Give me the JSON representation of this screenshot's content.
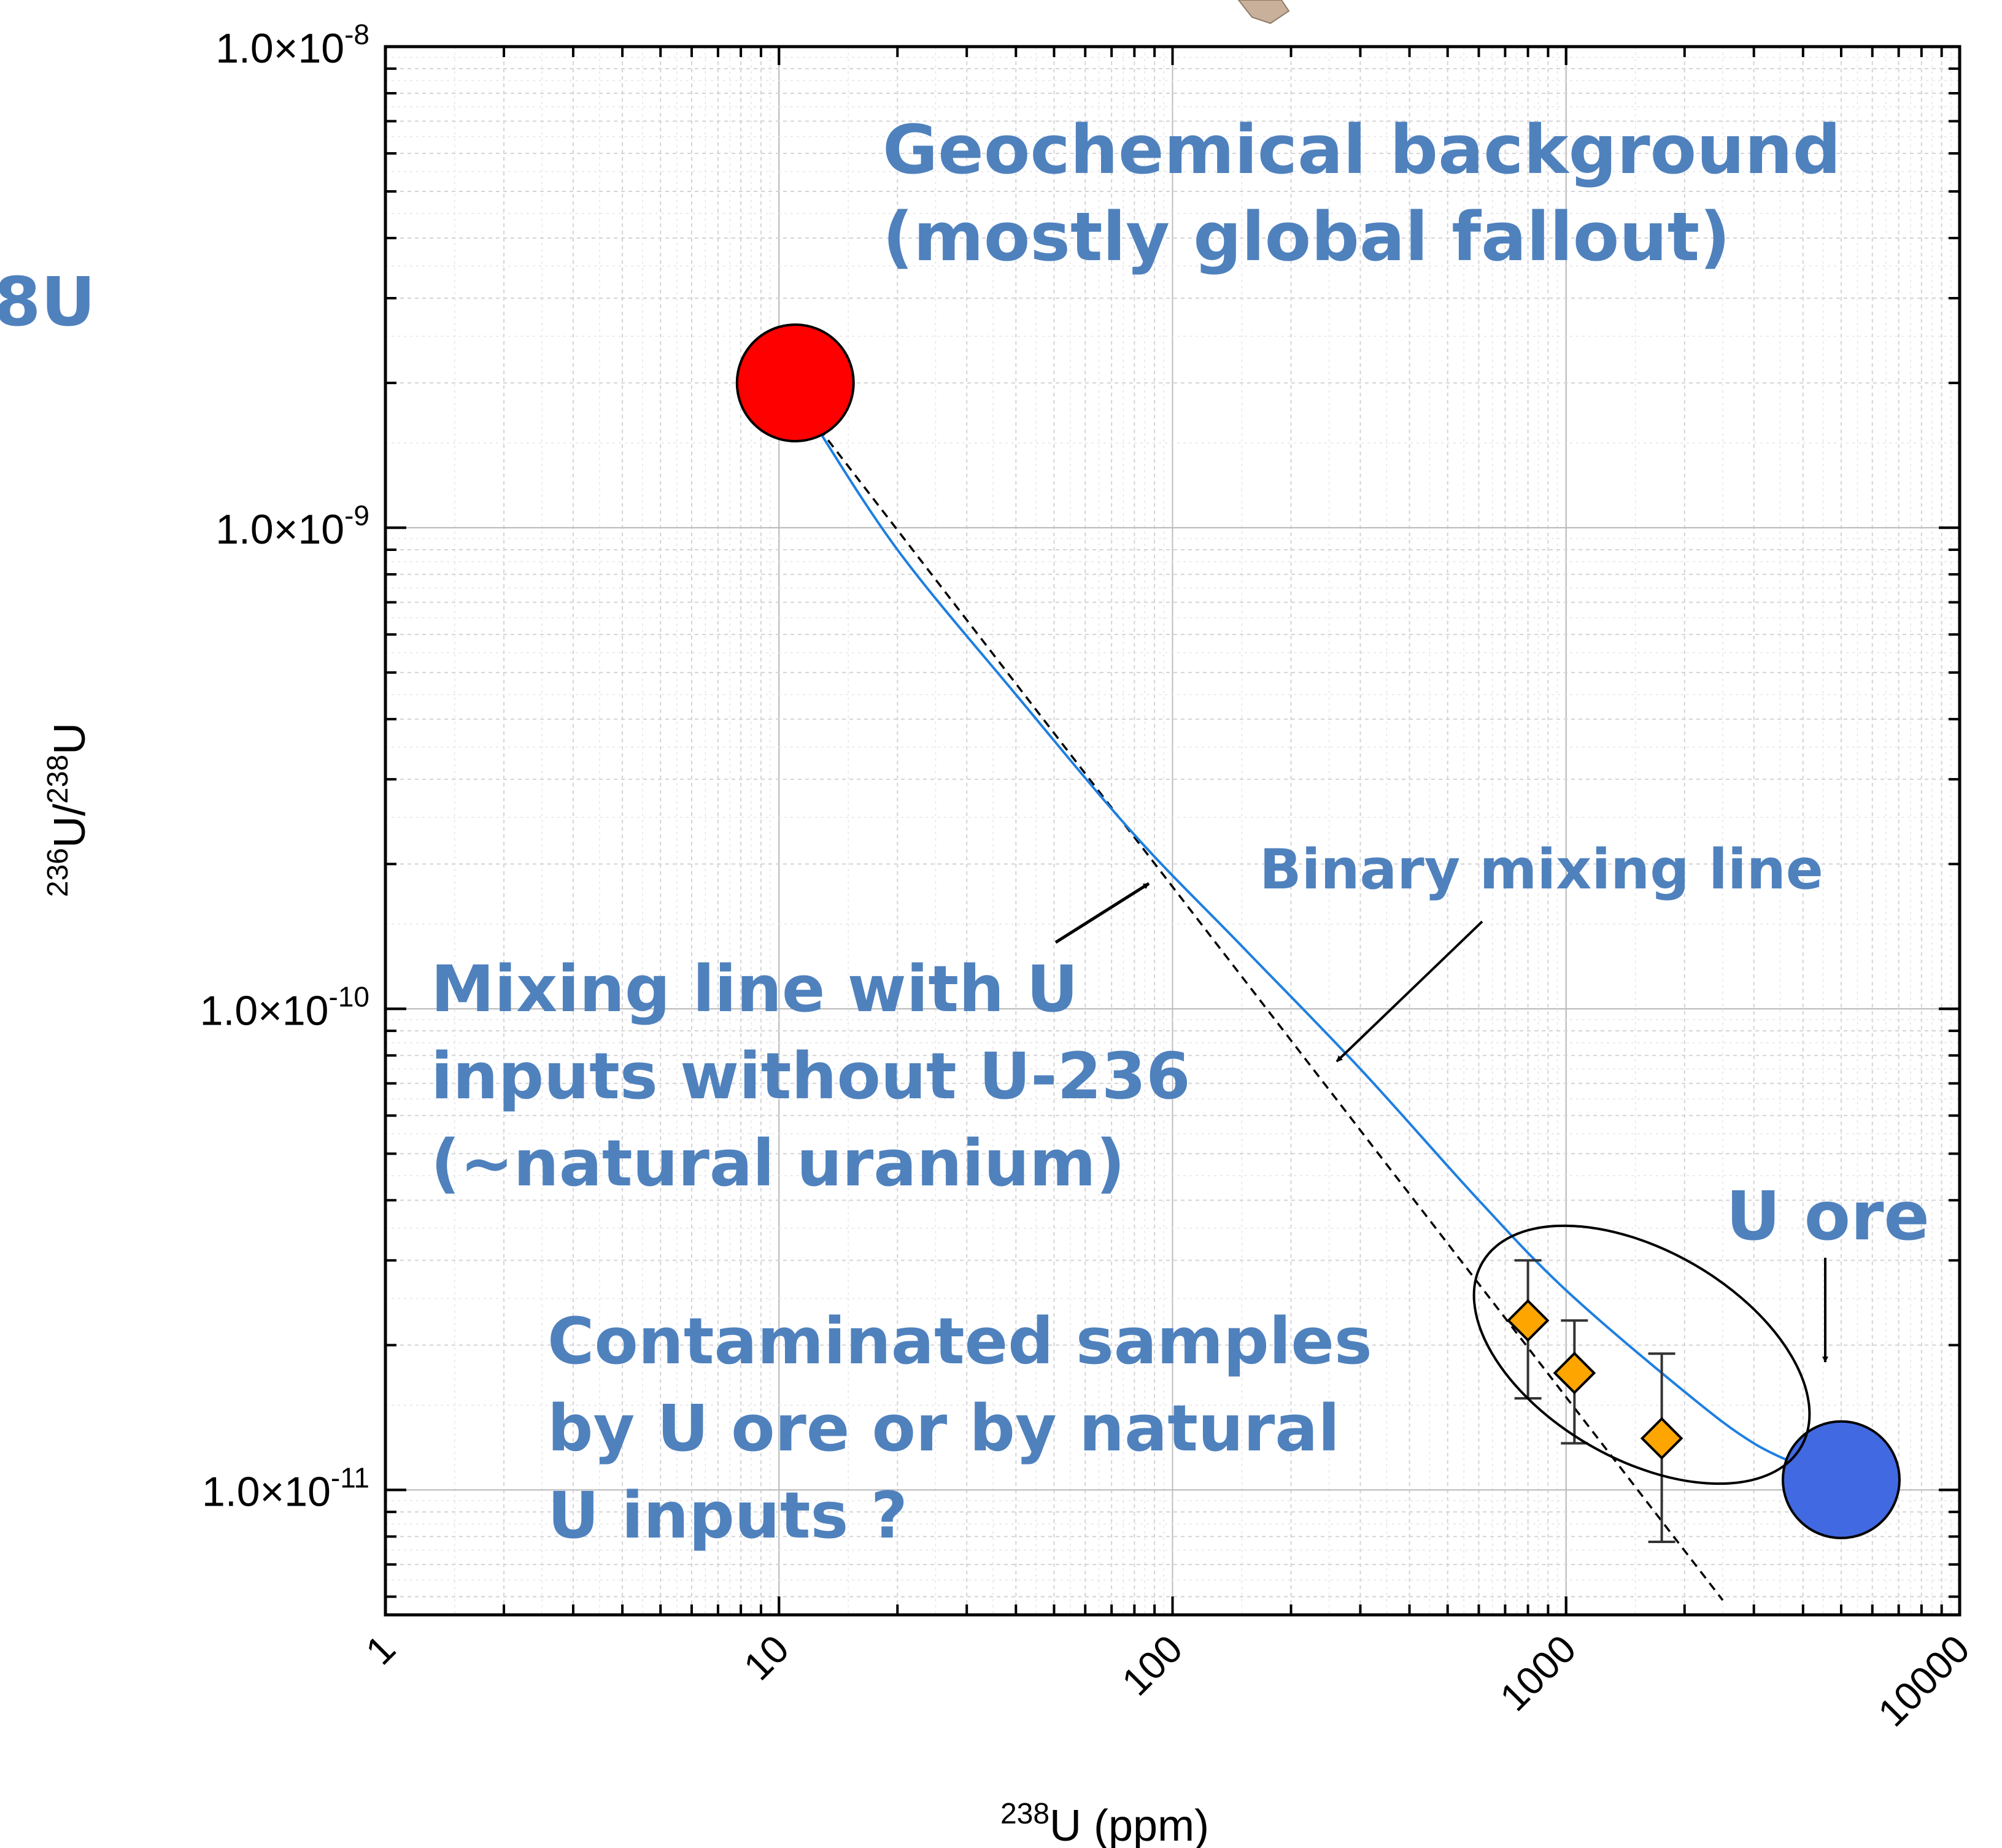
{
  "chart_data": {
    "type": "scatter",
    "x_scale": "log",
    "y_scale": "log",
    "xlim": [
      1,
      10000
    ],
    "ylim": [
      5.5e-12,
      1e-08
    ],
    "grid": true,
    "xlabel": {
      "sup": "238",
      "main": "U (ppm)"
    },
    "ylabel": {
      "sup1": "236",
      "mid": "U/",
      "sup2": "238",
      "main": "U"
    },
    "x_ticks": [
      {
        "value": 1,
        "label": "1"
      },
      {
        "value": 10,
        "label": "10"
      },
      {
        "value": 100,
        "label": "100"
      },
      {
        "value": 1000,
        "label": "1000"
      },
      {
        "value": 10000,
        "label": "10000"
      }
    ],
    "y_ticks": [
      {
        "value": 1e-08,
        "base": "1.0×10",
        "exp": "-8"
      },
      {
        "value": 1e-09,
        "base": "1.0×10",
        "exp": "-9"
      },
      {
        "value": 1e-10,
        "base": "1.0×10",
        "exp": "-10"
      },
      {
        "value": 1e-11,
        "base": "1.0×10",
        "exp": "-11"
      }
    ],
    "end_members": [
      {
        "x": 11,
        "y": 2e-09,
        "color": "#ff0000"
      },
      {
        "x": 5000,
        "y": 1.05e-11,
        "color": "#4169e1"
      }
    ],
    "samples": [
      {
        "x": 800,
        "y": 2.25e-11,
        "err_low": 1.55e-11,
        "err_high": 3e-11
      },
      {
        "x": 1050,
        "y": 1.75e-11,
        "err_low": 1.25e-11,
        "err_high": 2.25e-11
      },
      {
        "x": 1750,
        "y": 1.28e-11,
        "err_low": 7.8e-12,
        "err_high": 1.92e-11
      }
    ],
    "binary_mixing_line": [
      {
        "x": 12,
        "y": 1.7e-09
      },
      {
        "x": 20,
        "y": 9e-10
      },
      {
        "x": 40,
        "y": 4.5e-10
      },
      {
        "x": 80,
        "y": 2.3e-10
      },
      {
        "x": 150,
        "y": 1.35e-10
      },
      {
        "x": 300,
        "y": 7.5e-11
      },
      {
        "x": 600,
        "y": 4e-11
      },
      {
        "x": 1000,
        "y": 2.6e-11
      },
      {
        "x": 2000,
        "y": 1.6e-11
      },
      {
        "x": 3000,
        "y": 1.25e-11
      },
      {
        "x": 4300,
        "y": 1.09e-11
      }
    ],
    "natural_u_mixing_line": [
      {
        "x": 12,
        "y": 1.7e-09
      },
      {
        "x": 2500,
        "y": 5.9e-12
      }
    ],
    "series_colors": {
      "binary_mixing_line": "#1e7fe0",
      "natural_u_mixing_line": "#000000",
      "samples": "#ffa500"
    },
    "annotations": {
      "geochem_line1": "Geochemical background",
      "geochem_line2": "(mostly global fallout)",
      "binary": "Binary mixing line",
      "mixing_line1": "Mixing line with U",
      "mixing_line2": "inputs without U-236",
      "mixing_line3": "(~natural uranium)",
      "u_ore": "U ore",
      "contam_line1": "Contaminated samples",
      "contam_line2": "by U ore or by natural",
      "contam_line3": "U inputs ?",
      "left_edge_fragment": "8U"
    }
  }
}
